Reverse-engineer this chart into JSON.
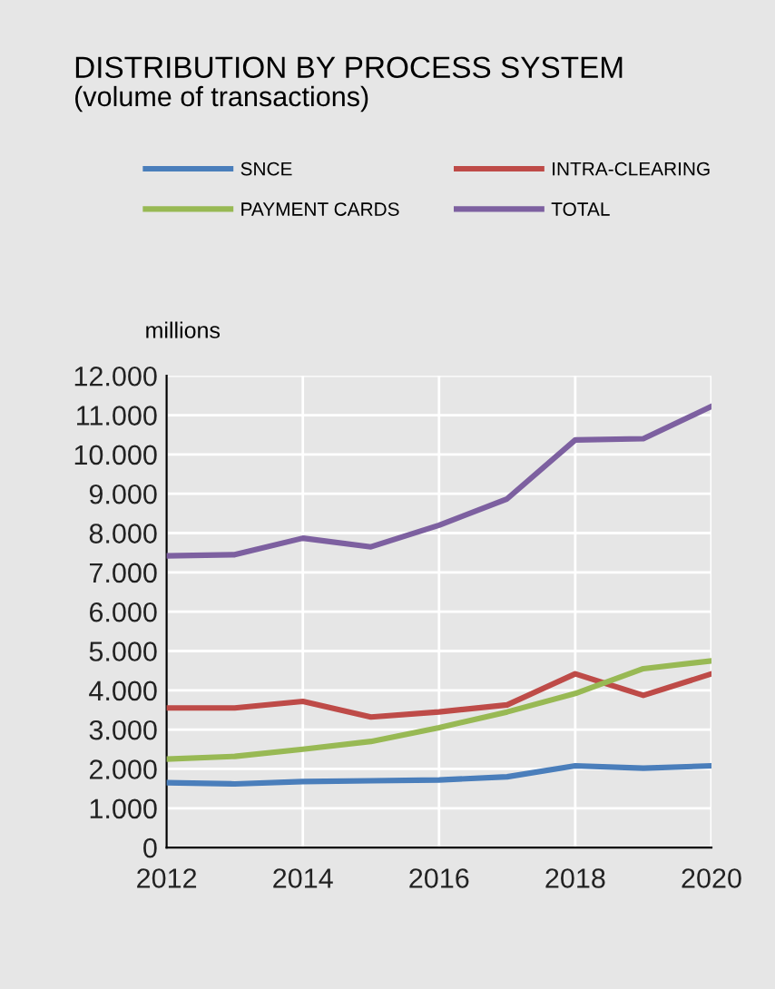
{
  "chart_data": {
    "type": "line",
    "title": "DISTRIBUTION BY PROCESS SYSTEM",
    "subtitle": "(volume of transactions)",
    "ylabel": "millions",
    "x": [
      2012,
      2013,
      2014,
      2015,
      2016,
      2017,
      2018,
      2019,
      2020
    ],
    "series": [
      {
        "name": "SNCE",
        "color": "#4a7ebb",
        "values": [
          1650,
          1620,
          1680,
          1700,
          1720,
          1800,
          2080,
          2020,
          2080
        ]
      },
      {
        "name": "INTRA-CLEARING",
        "color": "#be4b48",
        "values": [
          3550,
          3550,
          3720,
          3320,
          3450,
          3630,
          4420,
          3870,
          4420
        ]
      },
      {
        "name": "PAYMENT CARDS",
        "color": "#98b954",
        "values": [
          2250,
          2320,
          2500,
          2700,
          3050,
          3450,
          3920,
          4550,
          4750
        ]
      },
      {
        "name": "TOTAL",
        "color": "#7d60a0",
        "values": [
          7420,
          7450,
          7870,
          7650,
          8200,
          8870,
          10370,
          10400,
          11220
        ]
      }
    ],
    "xlim": [
      2012,
      2020
    ],
    "xticks": [
      2012,
      2014,
      2016,
      2018,
      2020
    ],
    "ylim": [
      0,
      12000
    ],
    "yticks": [
      0,
      {
        "value": 1000,
        "label": "1.000"
      },
      {
        "value": 2000,
        "label": "2.000"
      },
      {
        "value": 3000,
        "label": "3.000"
      },
      {
        "value": 4000,
        "label": "4.000"
      },
      {
        "value": 5000,
        "label": "5.000"
      },
      {
        "value": 6000,
        "label": "6.000"
      },
      {
        "value": 7000,
        "label": "7.000"
      },
      {
        "value": 8000,
        "label": "8.000"
      },
      {
        "value": 9000,
        "label": "9.000"
      },
      {
        "value": 10000,
        "label": "10.000"
      },
      {
        "value": 11000,
        "label": "11.000"
      },
      {
        "value": 12000,
        "label": "12.000"
      }
    ],
    "grid": true,
    "legend": "top",
    "marker": "none",
    "line_style": "solid"
  }
}
